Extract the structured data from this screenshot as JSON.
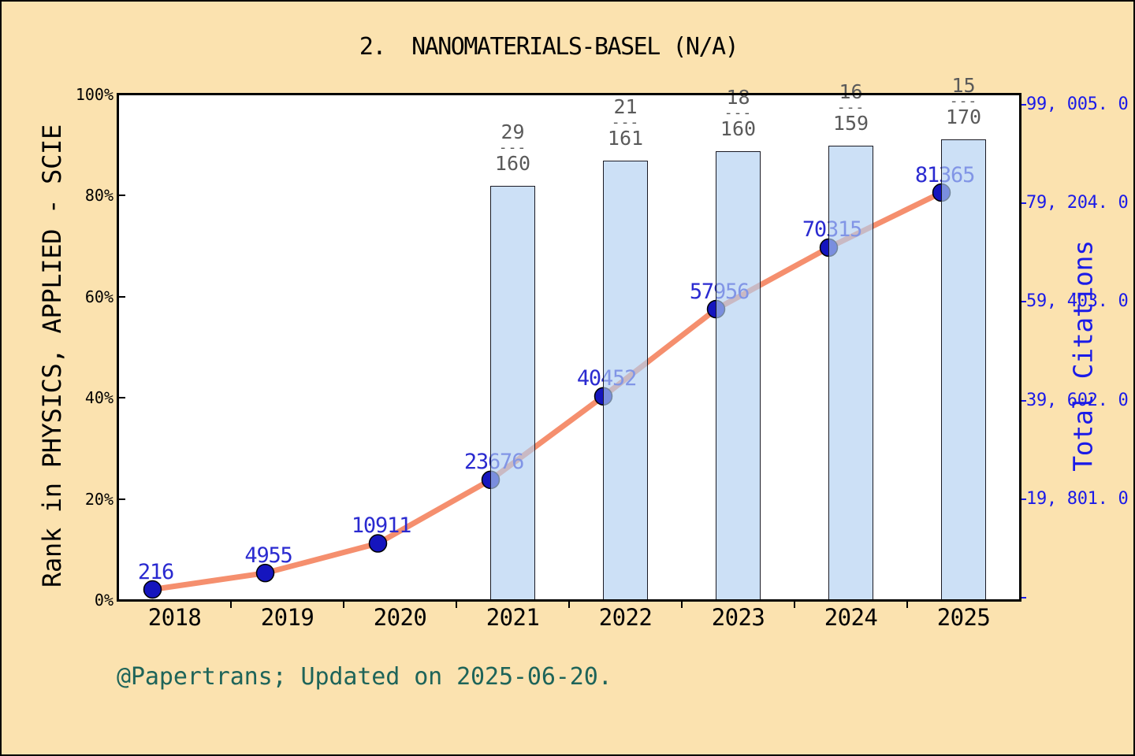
{
  "title": "2.  NANOMATERIALS-BASEL (N/A)",
  "footer": "@Papertrans; Updated on 2025-06-20.",
  "colors": {
    "background": "#FBE2AF",
    "plot_background": "#FFFFFF",
    "axis": "#000000",
    "bar_fill": "#B0CFF1",
    "bar_fill_opacity": 0.65,
    "bar_border": "#1A1A24",
    "line": "#F58F6E",
    "marker": "#1515BE",
    "value_label": "#2A2AD0",
    "right_axis_text": "#1A1AE8",
    "fraction_text": "#5A5A5A",
    "footer_text": "#1E6459"
  },
  "left_axis": {
    "label": "Rank in PHYSICS, APPLIED - SCIE",
    "tick_labels": [
      "0%",
      "20%",
      "40%",
      "60%",
      "80%",
      "100%"
    ],
    "tick_values": [
      0,
      20,
      40,
      60,
      80,
      100
    ]
  },
  "right_axis": {
    "label": "Total Citations",
    "tick_labels": [
      "19, 801. 0",
      "39, 602. 0",
      "59, 403. 0",
      "79, 204. 0",
      "99, 005. 0"
    ],
    "tick_values": [
      19801,
      39602,
      59403,
      79204,
      99005
    ],
    "max": 99005
  },
  "x_axis": {
    "tick_labels": [
      "2018",
      "2019",
      "2020",
      "2021",
      "2022",
      "2023",
      "2024",
      "2025"
    ]
  },
  "chart_data": [
    {
      "type": "line",
      "name": "Total Citations",
      "categories": [
        "2018",
        "2019",
        "2020",
        "2021",
        "2022",
        "2023",
        "2024",
        "2025"
      ],
      "values": [
        216,
        4955,
        10911,
        23676,
        40452,
        57956,
        70315,
        81365
      ],
      "point_labels": [
        "216",
        "4955",
        "10911",
        "23676",
        "40452",
        "57956",
        "70315",
        "81365"
      ],
      "axis": "right",
      "ylabel": "Total Citations",
      "ylim": [
        0,
        99005
      ],
      "yticks": [
        19801,
        39602,
        59403,
        79204,
        99005
      ],
      "legend": "none",
      "grid": false
    },
    {
      "type": "bar",
      "name": "Rank in PHYSICS, APPLIED - SCIE",
      "categories": [
        "2018",
        "2019",
        "2020",
        "2021",
        "2022",
        "2023",
        "2024",
        "2025"
      ],
      "rank": [
        null,
        null,
        null,
        29,
        21,
        18,
        16,
        15
      ],
      "total": [
        null,
        null,
        null,
        160,
        161,
        160,
        159,
        170
      ],
      "values_pct": [
        null,
        null,
        null,
        81.9,
        87.0,
        88.8,
        89.9,
        91.2
      ],
      "fraction_labels": [
        null,
        null,
        null,
        "29/160",
        "21/161",
        "18/160",
        "16/159",
        "15/170"
      ],
      "axis": "left",
      "ylabel": "Rank in PHYSICS, APPLIED - SCIE",
      "ylim": [
        0,
        100
      ],
      "legend": "none",
      "grid": false
    }
  ]
}
